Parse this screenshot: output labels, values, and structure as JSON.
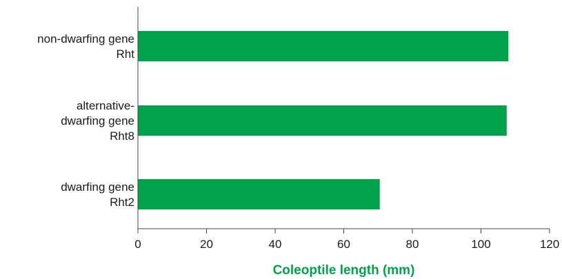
{
  "chart_data": {
    "type": "bar",
    "orientation": "horizontal",
    "categories": [
      [
        "non-dwarfing gene",
        "Rht"
      ],
      [
        "alternative-",
        "dwarfing gene",
        "Rht8"
      ],
      [
        "dwarfing gene",
        "Rht2"
      ]
    ],
    "values": [
      108,
      107.5,
      70.5
    ],
    "xlabel": "Coleoptile length (mm)",
    "ylabel": "",
    "xlim": [
      0,
      120
    ],
    "xticks": [
      0,
      20,
      40,
      60,
      80,
      100,
      120
    ],
    "grid": false,
    "colors": {
      "bar": "#00a24b",
      "xlabel": "#00a24b",
      "axis": "#444444"
    }
  }
}
